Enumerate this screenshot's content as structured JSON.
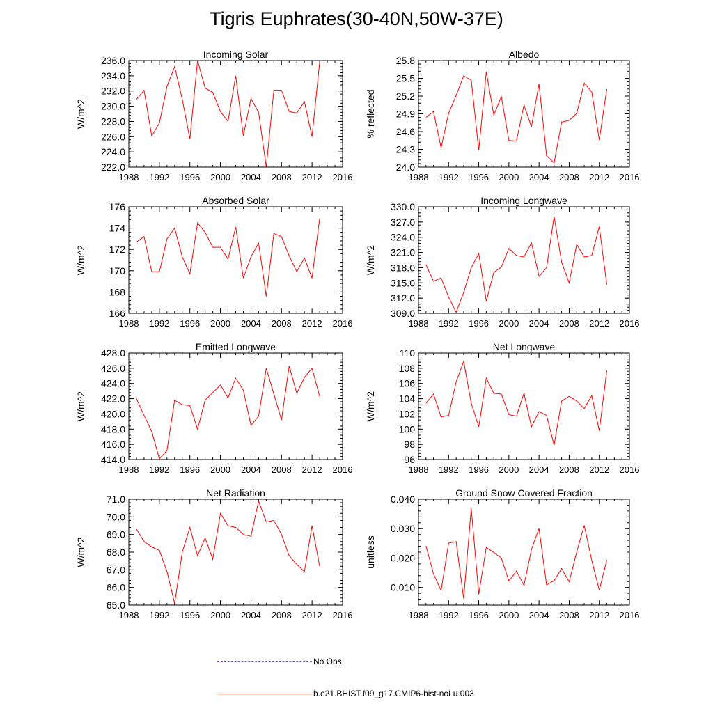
{
  "title": "Tigris Euphrates(30-40N,50W-37E)",
  "legend": [
    {
      "label": "No Obs",
      "color": "#5a5ad6",
      "style": "dashed"
    },
    {
      "label": "b.e21.BHIST.f09_g17.CMIP6-hist-noLu.003",
      "color": "#ff3030",
      "style": "solid"
    }
  ],
  "line_color": "#ff0000",
  "chart_data": [
    {
      "type": "line",
      "title": "Incoming Solar",
      "ylabel": "W/m^2",
      "xlim": [
        1988,
        2016
      ],
      "xticks": [
        1988,
        1992,
        1996,
        2000,
        2004,
        2008,
        2012,
        2016
      ],
      "ylim": [
        222,
        236
      ],
      "yticks": [
        222,
        224,
        226,
        228,
        230,
        232,
        234,
        236
      ],
      "ydecimals": 1,
      "x": [
        1989,
        1990,
        1991,
        1992,
        1993,
        1994,
        1995,
        1996,
        1997,
        1998,
        1999,
        2000,
        2001,
        2002,
        2003,
        2004,
        2005,
        2006,
        2007,
        2008,
        2009,
        2010,
        2011,
        2012,
        2013
      ],
      "series": [
        {
          "name": "b.e21.BHIST.f09_g17.CMIP6-hist-noLu.003",
          "values": [
            230.9,
            232.1,
            226.1,
            227.8,
            232.6,
            235.2,
            230.9,
            225.7,
            236.0,
            232.4,
            231.8,
            229.3,
            228.0,
            234.0,
            226.1,
            231.0,
            229.2,
            222.0,
            232.1,
            232.1,
            229.3,
            229.1,
            230.6,
            226.0,
            235.8
          ]
        }
      ]
    },
    {
      "type": "line",
      "title": "Albedo",
      "ylabel": "% reflected",
      "xlim": [
        1988,
        2016
      ],
      "xticks": [
        1988,
        1992,
        1996,
        2000,
        2004,
        2008,
        2012,
        2016
      ],
      "ylim": [
        24.0,
        25.8
      ],
      "yticks": [
        24.0,
        24.3,
        24.6,
        24.9,
        25.2,
        25.5,
        25.8
      ],
      "ydecimals": 1,
      "x": [
        1989,
        1990,
        1991,
        1992,
        1993,
        1994,
        1995,
        1996,
        1997,
        1998,
        1999,
        2000,
        2001,
        2002,
        2003,
        2004,
        2005,
        2006,
        2007,
        2008,
        2009,
        2010,
        2011,
        2012,
        2013
      ],
      "series": [
        {
          "name": "b.e21.BHIST.f09_g17.CMIP6-hist-noLu.003",
          "values": [
            24.84,
            24.94,
            24.33,
            24.91,
            25.21,
            25.54,
            25.47,
            24.28,
            25.61,
            24.88,
            25.19,
            24.45,
            24.44,
            25.05,
            24.68,
            25.41,
            24.19,
            24.07,
            24.76,
            24.79,
            24.91,
            25.42,
            25.27,
            24.46,
            25.32
          ]
        }
      ]
    },
    {
      "type": "line",
      "title": "Absorbed Solar",
      "ylabel": "W/m^2",
      "xlim": [
        1988,
        2016
      ],
      "xticks": [
        1988,
        1992,
        1996,
        2000,
        2004,
        2008,
        2012,
        2016
      ],
      "ylim": [
        166,
        176
      ],
      "yticks": [
        166,
        168,
        170,
        172,
        174,
        176
      ],
      "ydecimals": 0,
      "x": [
        1989,
        1990,
        1991,
        1992,
        1993,
        1994,
        1995,
        1996,
        1997,
        1998,
        1999,
        2000,
        2001,
        2002,
        2003,
        2004,
        2005,
        2006,
        2007,
        2008,
        2009,
        2010,
        2011,
        2012,
        2013
      ],
      "series": [
        {
          "name": "b.e21.BHIST.f09_g17.CMIP6-hist-noLu.003",
          "values": [
            172.7,
            173.2,
            169.9,
            169.9,
            173.0,
            174.0,
            171.3,
            169.7,
            174.5,
            173.6,
            172.2,
            172.2,
            171.1,
            174.1,
            169.3,
            171.3,
            172.6,
            167.6,
            173.5,
            173.2,
            171.4,
            169.9,
            171.2,
            169.3,
            174.9
          ]
        }
      ]
    },
    {
      "type": "line",
      "title": "Incoming Longwave",
      "ylabel": "W/m^2",
      "xlim": [
        1988,
        2016
      ],
      "xticks": [
        1988,
        1992,
        1996,
        2000,
        2004,
        2008,
        2012,
        2016
      ],
      "ylim": [
        309,
        330
      ],
      "yticks": [
        309,
        312,
        315,
        318,
        321,
        324,
        327,
        330
      ],
      "ydecimals": 1,
      "x": [
        1989,
        1990,
        1991,
        1992,
        1993,
        1994,
        1995,
        1996,
        1997,
        1998,
        1999,
        2000,
        2001,
        2002,
        2003,
        2004,
        2005,
        2006,
        2007,
        2008,
        2009,
        2010,
        2011,
        2012,
        2013
      ],
      "series": [
        {
          "name": "b.e21.BHIST.f09_g17.CMIP6-hist-noLu.003",
          "values": [
            318.6,
            315.3,
            316.0,
            312.2,
            309.2,
            313.1,
            318.0,
            320.8,
            311.4,
            317.1,
            318.1,
            321.8,
            320.4,
            320.1,
            322.9,
            316.3,
            318.0,
            328.1,
            319.1,
            315.0,
            322.6,
            320.1,
            320.4,
            326.1,
            314.6
          ]
        }
      ]
    },
    {
      "type": "line",
      "title": "Emitted Longwave",
      "ylabel": "W/m^2",
      "xlim": [
        1988,
        2016
      ],
      "xticks": [
        1988,
        1992,
        1996,
        2000,
        2004,
        2008,
        2012,
        2016
      ],
      "ylim": [
        414,
        428
      ],
      "yticks": [
        414,
        416,
        418,
        420,
        422,
        424,
        426,
        428
      ],
      "ydecimals": 1,
      "x": [
        1989,
        1990,
        1991,
        1992,
        1993,
        1994,
        1995,
        1996,
        1997,
        1998,
        1999,
        2000,
        2001,
        2002,
        2003,
        2004,
        2005,
        2006,
        2007,
        2008,
        2009,
        2010,
        2011,
        2012,
        2013
      ],
      "series": [
        {
          "name": "b.e21.BHIST.f09_g17.CMIP6-hist-noLu.003",
          "values": [
            422.0,
            419.8,
            417.7,
            414.1,
            415.2,
            421.8,
            421.2,
            421.1,
            418.0,
            421.8,
            422.8,
            423.8,
            422.1,
            424.7,
            423.1,
            418.5,
            419.7,
            426.0,
            422.6,
            419.2,
            426.3,
            422.7,
            424.8,
            426.0,
            422.3
          ]
        }
      ]
    },
    {
      "type": "line",
      "title": "Net Longwave",
      "ylabel": "W/m^2",
      "xlim": [
        1988,
        2016
      ],
      "xticks": [
        1988,
        1992,
        1996,
        2000,
        2004,
        2008,
        2012,
        2016
      ],
      "ylim": [
        96,
        110
      ],
      "yticks": [
        96,
        98,
        100,
        102,
        104,
        106,
        108,
        110
      ],
      "ydecimals": 0,
      "x": [
        1989,
        1990,
        1991,
        1992,
        1993,
        1994,
        1995,
        1996,
        1997,
        1998,
        1999,
        2000,
        2001,
        2002,
        2003,
        2004,
        2005,
        2006,
        2007,
        2008,
        2009,
        2010,
        2011,
        2012,
        2013
      ],
      "series": [
        {
          "name": "b.e21.BHIST.f09_g17.CMIP6-hist-noLu.003",
          "values": [
            103.4,
            104.6,
            101.6,
            101.8,
            106.2,
            108.9,
            103.4,
            100.3,
            106.7,
            104.7,
            104.6,
            101.9,
            101.7,
            104.7,
            100.3,
            102.3,
            101.8,
            97.9,
            103.7,
            104.3,
            103.7,
            102.7,
            104.4,
            99.8,
            107.7
          ]
        }
      ]
    },
    {
      "type": "line",
      "title": "Net Radiation",
      "ylabel": "W/m^2",
      "xlim": [
        1988,
        2016
      ],
      "xticks": [
        1988,
        1992,
        1996,
        2000,
        2004,
        2008,
        2012,
        2016
      ],
      "ylim": [
        65,
        71
      ],
      "yticks": [
        65,
        66,
        67,
        68,
        69,
        70,
        71
      ],
      "ydecimals": 1,
      "x": [
        1989,
        1990,
        1991,
        1992,
        1993,
        1994,
        1995,
        1996,
        1997,
        1998,
        1999,
        2000,
        2001,
        2002,
        2003,
        2004,
        2005,
        2006,
        2007,
        2008,
        2009,
        2010,
        2011,
        2012,
        2013
      ],
      "series": [
        {
          "name": "b.e21.BHIST.f09_g17.CMIP6-hist-noLu.003",
          "values": [
            69.3,
            68.6,
            68.3,
            68.1,
            66.9,
            65.1,
            68.0,
            69.4,
            67.8,
            68.8,
            67.6,
            70.2,
            69.5,
            69.4,
            69.0,
            68.9,
            70.9,
            69.7,
            69.8,
            69.0,
            67.8,
            67.3,
            66.9,
            69.5,
            67.2
          ]
        }
      ]
    },
    {
      "type": "line",
      "title": "Ground Snow Covered Fraction",
      "ylabel": "unitless",
      "xlim": [
        1988,
        2016
      ],
      "xticks": [
        1988,
        1992,
        1996,
        2000,
        2004,
        2008,
        2012,
        2016
      ],
      "ylim": [
        0.004,
        0.04
      ],
      "yticks": [
        0.01,
        0.02,
        0.03,
        0.04
      ],
      "ydecimals": 3,
      "x": [
        1989,
        1990,
        1991,
        1992,
        1993,
        1994,
        1995,
        1996,
        1997,
        1998,
        1999,
        2000,
        2001,
        2002,
        2003,
        2004,
        2005,
        2006,
        2007,
        2008,
        2009,
        2010,
        2011,
        2012,
        2013
      ],
      "series": [
        {
          "name": "b.e21.BHIST.f09_g17.CMIP6-hist-noLu.003",
          "values": [
            0.0241,
            0.0146,
            0.0089,
            0.0251,
            0.0256,
            0.0062,
            0.0369,
            0.0077,
            0.0236,
            0.0219,
            0.02,
            0.0122,
            0.0156,
            0.0107,
            0.0229,
            0.0301,
            0.0109,
            0.0123,
            0.0164,
            0.0119,
            0.0221,
            0.0311,
            0.0192,
            0.009,
            0.0193
          ]
        }
      ]
    }
  ]
}
